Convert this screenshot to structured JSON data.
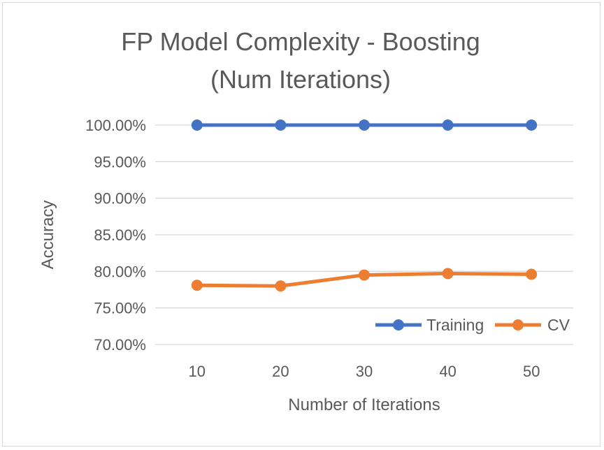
{
  "chart_data": {
    "type": "line",
    "title_lines": [
      "FP Model Complexity - Boosting",
      "(Num Iterations)"
    ],
    "xlabel": "Number of Iterations",
    "ylabel": "Accuracy",
    "categories": [
      "10",
      "20",
      "30",
      "40",
      "50"
    ],
    "ylim": [
      0.7,
      1.0
    ],
    "yticks": [
      0.7,
      0.75,
      0.8,
      0.85,
      0.9,
      0.95,
      1.0
    ],
    "ytick_labels": [
      "70.00%",
      "75.00%",
      "80.00%",
      "85.00%",
      "90.00%",
      "95.00%",
      "100.00%"
    ],
    "grid": true,
    "legend_position": "bottom-right, inside plot",
    "series": [
      {
        "name": "Training",
        "color": "#4472C4",
        "values": [
          1.0,
          1.0,
          1.0,
          1.0,
          1.0
        ]
      },
      {
        "name": "CV",
        "color": "#ED7D31",
        "values": [
          0.781,
          0.78,
          0.795,
          0.797,
          0.796
        ]
      }
    ]
  }
}
